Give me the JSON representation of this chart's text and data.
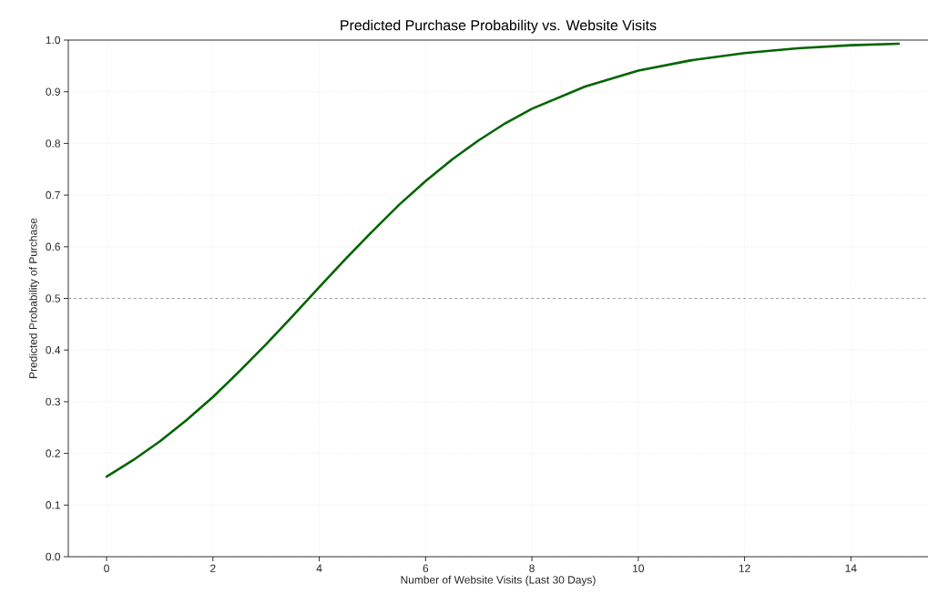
{
  "chart_data": {
    "type": "line",
    "title": "Predicted Purchase Probability vs. Website Visits",
    "xlabel": "Number of Website Visits (Last 30 Days)",
    "ylabel": "Predicted Probability of Purchase",
    "x": [
      0,
      0.5,
      1,
      1.5,
      2,
      2.5,
      3,
      3.5,
      4,
      4.5,
      5,
      5.5,
      6,
      6.5,
      7,
      7.5,
      8,
      9,
      10,
      11,
      12,
      13,
      14,
      14.9
    ],
    "series": [
      {
        "color": "#006400",
        "values": [
          0.155,
          0.187,
          0.223,
          0.264,
          0.309,
          0.359,
          0.411,
          0.466,
          0.522,
          0.577,
          0.63,
          0.681,
          0.727,
          0.769,
          0.806,
          0.839,
          0.867,
          0.91,
          0.941,
          0.961,
          0.975,
          0.984,
          0.99,
          0.993
        ]
      }
    ],
    "xlim": [
      -0.72,
      15.45
    ],
    "ylim": [
      0,
      1
    ],
    "xticks": [
      0,
      2,
      4,
      6,
      8,
      10,
      12,
      14
    ],
    "yticks": [
      {
        "value": 0,
        "label": "0.0"
      },
      0.1,
      0.2,
      0.3,
      0.4,
      0.5,
      0.6,
      0.7,
      0.8,
      0.9,
      {
        "value": 1,
        "label": "1.0"
      }
    ],
    "ref_lines": [
      {
        "axis": "y",
        "value": 0.5,
        "color": "#a0a0a0",
        "line_style": "dashed"
      }
    ],
    "grid": true,
    "marker": "none",
    "line_style": "solid"
  }
}
